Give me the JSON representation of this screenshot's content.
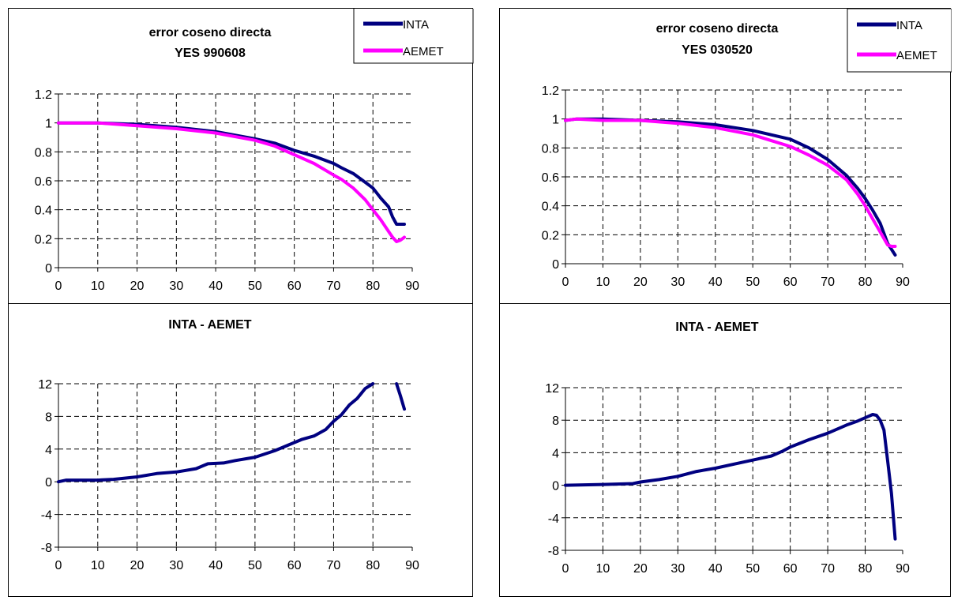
{
  "chart_data": [
    {
      "type": "line",
      "title": [
        "error coseno directa",
        "YES 990608"
      ],
      "xlim": [
        0,
        90
      ],
      "ylim": [
        0,
        1.2
      ],
      "xticks": [
        0,
        10,
        20,
        30,
        40,
        50,
        60,
        70,
        80,
        90
      ],
      "yticks": [
        0,
        0.2,
        0.4,
        0.6,
        0.8,
        1,
        1.2
      ],
      "grid": true,
      "legend": "top-right",
      "series": [
        {
          "name": "INTA",
          "color": "#000080",
          "x": [
            0,
            10,
            20,
            30,
            40,
            50,
            55,
            60,
            65,
            70,
            72,
            75,
            78,
            80,
            82,
            84,
            85,
            86,
            88
          ],
          "y": [
            1.0,
            1.0,
            0.99,
            0.97,
            0.94,
            0.89,
            0.86,
            0.81,
            0.77,
            0.72,
            0.69,
            0.65,
            0.59,
            0.55,
            0.48,
            0.42,
            0.35,
            0.3,
            0.3
          ]
        },
        {
          "name": "AEMET",
          "color": "#ff00ff",
          "x": [
            0,
            10,
            20,
            30,
            40,
            50,
            55,
            60,
            65,
            70,
            72,
            75,
            78,
            80,
            82,
            84,
            85,
            86,
            87,
            88
          ],
          "y": [
            1.0,
            1.0,
            0.98,
            0.96,
            0.93,
            0.88,
            0.84,
            0.78,
            0.72,
            0.64,
            0.61,
            0.55,
            0.47,
            0.4,
            0.33,
            0.25,
            0.21,
            0.18,
            0.19,
            0.21
          ]
        }
      ]
    },
    {
      "type": "line",
      "title": [
        "error coseno directa",
        "YES 030520"
      ],
      "xlim": [
        0,
        90
      ],
      "ylim": [
        0,
        1.2
      ],
      "xticks": [
        0,
        10,
        20,
        30,
        40,
        50,
        60,
        70,
        80,
        90
      ],
      "yticks": [
        0,
        0.2,
        0.4,
        0.6,
        0.8,
        1,
        1.2
      ],
      "grid": true,
      "legend": "top-right",
      "series": [
        {
          "name": "INTA",
          "color": "#000080",
          "x": [
            0,
            3,
            10,
            20,
            30,
            40,
            50,
            55,
            60,
            65,
            70,
            75,
            78,
            80,
            82,
            84,
            86,
            88
          ],
          "y": [
            0.99,
            1.0,
            1.0,
            0.99,
            0.98,
            0.96,
            0.92,
            0.89,
            0.86,
            0.8,
            0.72,
            0.61,
            0.52,
            0.45,
            0.37,
            0.28,
            0.14,
            0.06
          ]
        },
        {
          "name": "AEMET",
          "color": "#ff00ff",
          "x": [
            0,
            3,
            10,
            20,
            30,
            40,
            50,
            55,
            60,
            65,
            70,
            75,
            78,
            80,
            82,
            84,
            86,
            87,
            88
          ],
          "y": [
            0.99,
            1.0,
            0.99,
            0.99,
            0.97,
            0.94,
            0.89,
            0.85,
            0.81,
            0.75,
            0.68,
            0.58,
            0.48,
            0.4,
            0.31,
            0.22,
            0.13,
            0.12,
            0.12
          ]
        }
      ]
    },
    {
      "type": "line",
      "title": [
        "INTA - AEMET"
      ],
      "xlim": [
        0,
        90
      ],
      "ylim": [
        -8,
        12
      ],
      "xticks": [
        0,
        10,
        20,
        30,
        40,
        50,
        60,
        70,
        80,
        90
      ],
      "yticks": [
        -8,
        -4,
        0,
        4,
        8,
        12
      ],
      "grid": true,
      "legend": "none",
      "series": [
        {
          "color": "#000080",
          "x": [
            0,
            2,
            10,
            14,
            20,
            25,
            30,
            35,
            38,
            42,
            45,
            50,
            55,
            60,
            62,
            65,
            68,
            70,
            72,
            74,
            76,
            78,
            80
          ],
          "y": [
            0,
            0.2,
            0.2,
            0.3,
            0.6,
            1.0,
            1.2,
            1.6,
            2.2,
            2.3,
            2.6,
            3.0,
            3.8,
            4.8,
            5.2,
            5.6,
            6.4,
            7.4,
            8.2,
            9.4,
            10.2,
            11.4,
            12.0
          ]
        },
        {
          "color": "#000080",
          "x": [
            86,
            87,
            88
          ],
          "y": [
            12.0,
            10.5,
            8.9
          ]
        }
      ]
    },
    {
      "type": "line",
      "title": [
        "INTA - AEMET"
      ],
      "xlim": [
        0,
        90
      ],
      "ylim": [
        -8,
        12
      ],
      "xticks": [
        0,
        10,
        20,
        30,
        40,
        50,
        60,
        70,
        80,
        90
      ],
      "yticks": [
        -8,
        -4,
        0,
        4,
        8,
        12
      ],
      "grid": true,
      "legend": "none",
      "series": [
        {
          "color": "#000080",
          "x": [
            0,
            10,
            18,
            20,
            25,
            30,
            35,
            40,
            45,
            50,
            55,
            58,
            60,
            65,
            70,
            72,
            75,
            78,
            80,
            82,
            83,
            84,
            85,
            86,
            87,
            88
          ],
          "y": [
            0,
            0.1,
            0.2,
            0.4,
            0.7,
            1.1,
            1.7,
            2.1,
            2.6,
            3.1,
            3.6,
            4.2,
            4.7,
            5.6,
            6.4,
            6.8,
            7.4,
            7.9,
            8.3,
            8.7,
            8.6,
            8.0,
            6.8,
            3.0,
            -1.0,
            -6.6
          ]
        }
      ]
    }
  ]
}
